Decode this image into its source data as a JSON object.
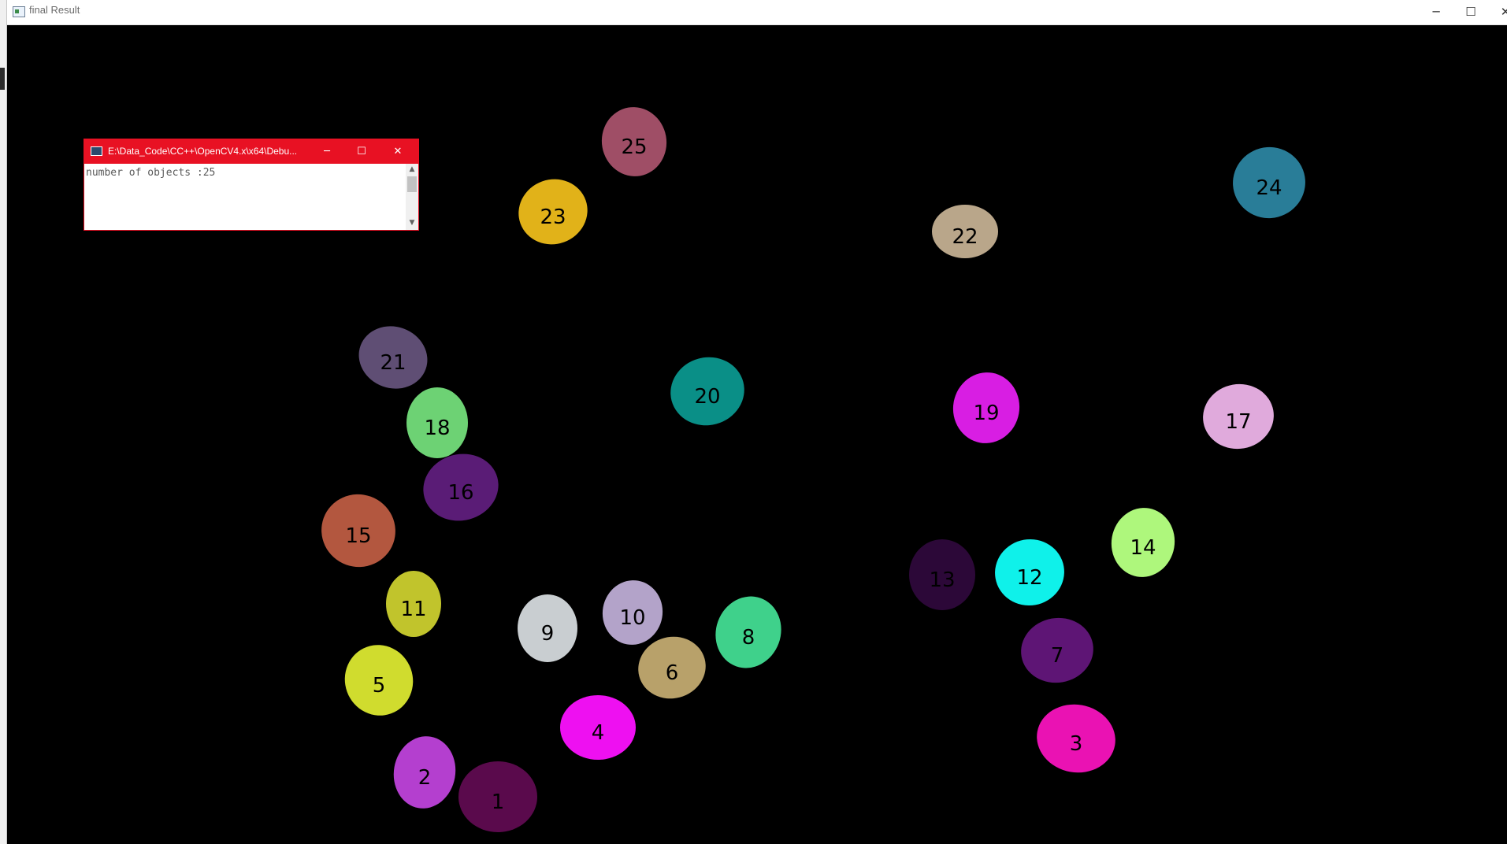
{
  "window": {
    "title": "final Result",
    "icon": "app-window-icon",
    "controls": {
      "minimize": "─",
      "maximize": "☐",
      "close": "✕"
    }
  },
  "console": {
    "title": "E:\\Data_Code\\CC++\\OpenCV4.x\\x64\\Debu...",
    "output": "number of objects :25",
    "controls": {
      "minimize": "─",
      "maximize": "☐",
      "close": "✕"
    },
    "accent_color": "#e81123"
  },
  "canvas": {
    "background": "#000000"
  },
  "objects": [
    {
      "label": "1",
      "color": "#5a0a4c"
    },
    {
      "label": "2",
      "color": "#b43fcf"
    },
    {
      "label": "3",
      "color": "#ea12b3"
    },
    {
      "label": "4",
      "color": "#ee10f1"
    },
    {
      "label": "5",
      "color": "#d0dc2e"
    },
    {
      "label": "6",
      "color": "#b8a16a"
    },
    {
      "label": "7",
      "color": "#5e1575"
    },
    {
      "label": "8",
      "color": "#3fd18b"
    },
    {
      "label": "9",
      "color": "#c9ced1"
    },
    {
      "label": "10",
      "color": "#b3a3c9"
    },
    {
      "label": "11",
      "color": "#c1c42c"
    },
    {
      "label": "12",
      "color": "#0ff1ea"
    },
    {
      "label": "13",
      "color": "#2c0838"
    },
    {
      "label": "14",
      "color": "#aef77c"
    },
    {
      "label": "15",
      "color": "#b3573f"
    },
    {
      "label": "16",
      "color": "#5a1c76"
    },
    {
      "label": "17",
      "color": "#e0aadc"
    },
    {
      "label": "18",
      "color": "#6dd274"
    },
    {
      "label": "19",
      "color": "#d81ee3"
    },
    {
      "label": "20",
      "color": "#0a8f87"
    },
    {
      "label": "21",
      "color": "#5f4e74"
    },
    {
      "label": "22",
      "color": "#b9a68a"
    },
    {
      "label": "23",
      "color": "#e1b219"
    },
    {
      "label": "24",
      "color": "#297d98"
    },
    {
      "label": "25",
      "color": "#9f4e66"
    }
  ]
}
